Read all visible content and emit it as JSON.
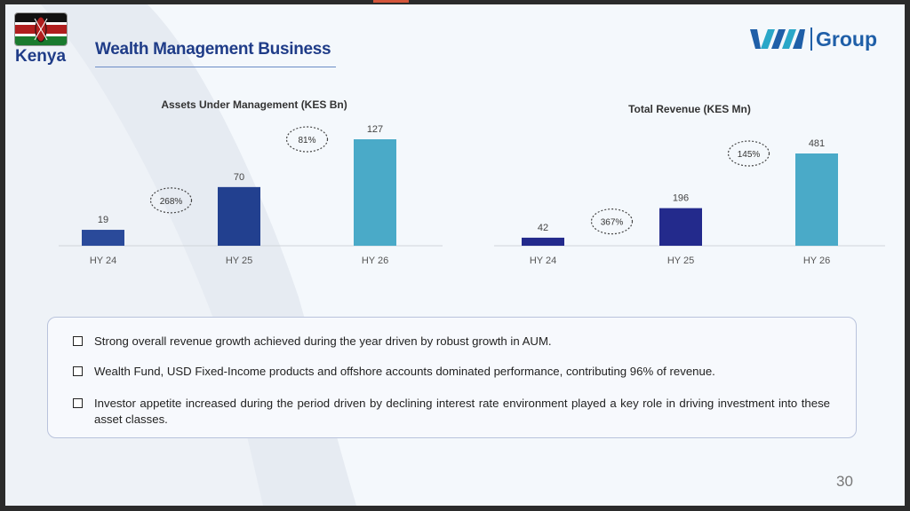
{
  "header": {
    "country": "Kenya",
    "title": "Wealth Management Business",
    "logo_text": "Group"
  },
  "charts": [
    {
      "type": "bar",
      "title": "Assets Under Management (KES Bn)",
      "categories": [
        "HY 24",
        "HY 25",
        "HY 26"
      ],
      "values": [
        19,
        70,
        127
      ],
      "growth": [
        "268%",
        "81%"
      ],
      "colors": [
        "#2a4a9a",
        "#22408f",
        "#4aaac8"
      ]
    },
    {
      "type": "bar",
      "title": "Total Revenue (KES Mn)",
      "categories": [
        "HY 24",
        "HY 25",
        "HY 26"
      ],
      "values": [
        42,
        196,
        481
      ],
      "growth": [
        "367%",
        "145%"
      ],
      "colors": [
        "#232a8c",
        "#232a8c",
        "#4aaac8"
      ]
    }
  ],
  "chart_data": [
    {
      "type": "bar",
      "title": "Assets Under Management (KES Bn)",
      "categories": [
        "HY 24",
        "HY 25",
        "HY 26"
      ],
      "values": [
        19,
        70,
        127
      ]
    },
    {
      "type": "bar",
      "title": "Total Revenue (KES Mn)",
      "categories": [
        "HY 24",
        "HY 25",
        "HY 26"
      ],
      "values": [
        42,
        196,
        481
      ]
    }
  ],
  "notes": [
    "Strong overall revenue growth achieved during the year driven by robust growth in AUM.",
    "Wealth Fund, USD Fixed-Income products and offshore accounts dominated performance, contributing 96% of revenue.",
    "Investor appetite increased during the period driven by declining interest rate environment played a key role in driving investment into these asset classes."
  ],
  "page_number": "30",
  "colors": {
    "accent": "#1f3c88",
    "bar_dark": "#232a8c",
    "bar_light": "#4aaac8"
  }
}
